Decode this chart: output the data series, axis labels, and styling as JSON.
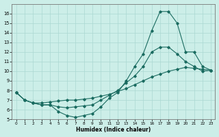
{
  "xlabel": "Humidex (Indice chaleur)",
  "xlim": [
    -0.5,
    23.5
  ],
  "ylim": [
    5,
    17
  ],
  "yticks": [
    5,
    6,
    7,
    8,
    9,
    10,
    11,
    12,
    13,
    14,
    15,
    16
  ],
  "xticks": [
    0,
    1,
    2,
    3,
    4,
    5,
    6,
    7,
    8,
    9,
    10,
    11,
    12,
    13,
    14,
    15,
    16,
    17,
    18,
    19,
    20,
    21,
    22,
    23
  ],
  "bg_color": "#cceee8",
  "grid_color": "#aad8d2",
  "line_color": "#1a6b60",
  "line1_y": [
    7.8,
    7.0,
    6.7,
    6.7,
    6.8,
    6.9,
    7.0,
    7.0,
    7.1,
    7.2,
    7.4,
    7.6,
    7.9,
    8.2,
    8.6,
    9.0,
    9.4,
    9.7,
    10.0,
    10.2,
    10.4,
    10.3,
    10.2,
    10.1
  ],
  "line2_y": [
    7.8,
    7.0,
    6.7,
    6.5,
    6.5,
    6.3,
    6.2,
    6.3,
    6.4,
    6.5,
    7.0,
    7.5,
    8.0,
    8.8,
    9.5,
    10.5,
    12.0,
    12.5,
    12.5,
    11.8,
    11.0,
    10.5,
    10.0,
    10.1
  ],
  "line3_y": [
    7.8,
    7.0,
    6.7,
    6.5,
    6.5,
    5.8,
    5.4,
    5.2,
    5.4,
    5.6,
    6.3,
    7.2,
    7.8,
    9.0,
    10.5,
    11.8,
    14.2,
    16.2,
    16.2,
    15.0,
    12.0,
    12.0,
    10.5,
    10.1
  ]
}
